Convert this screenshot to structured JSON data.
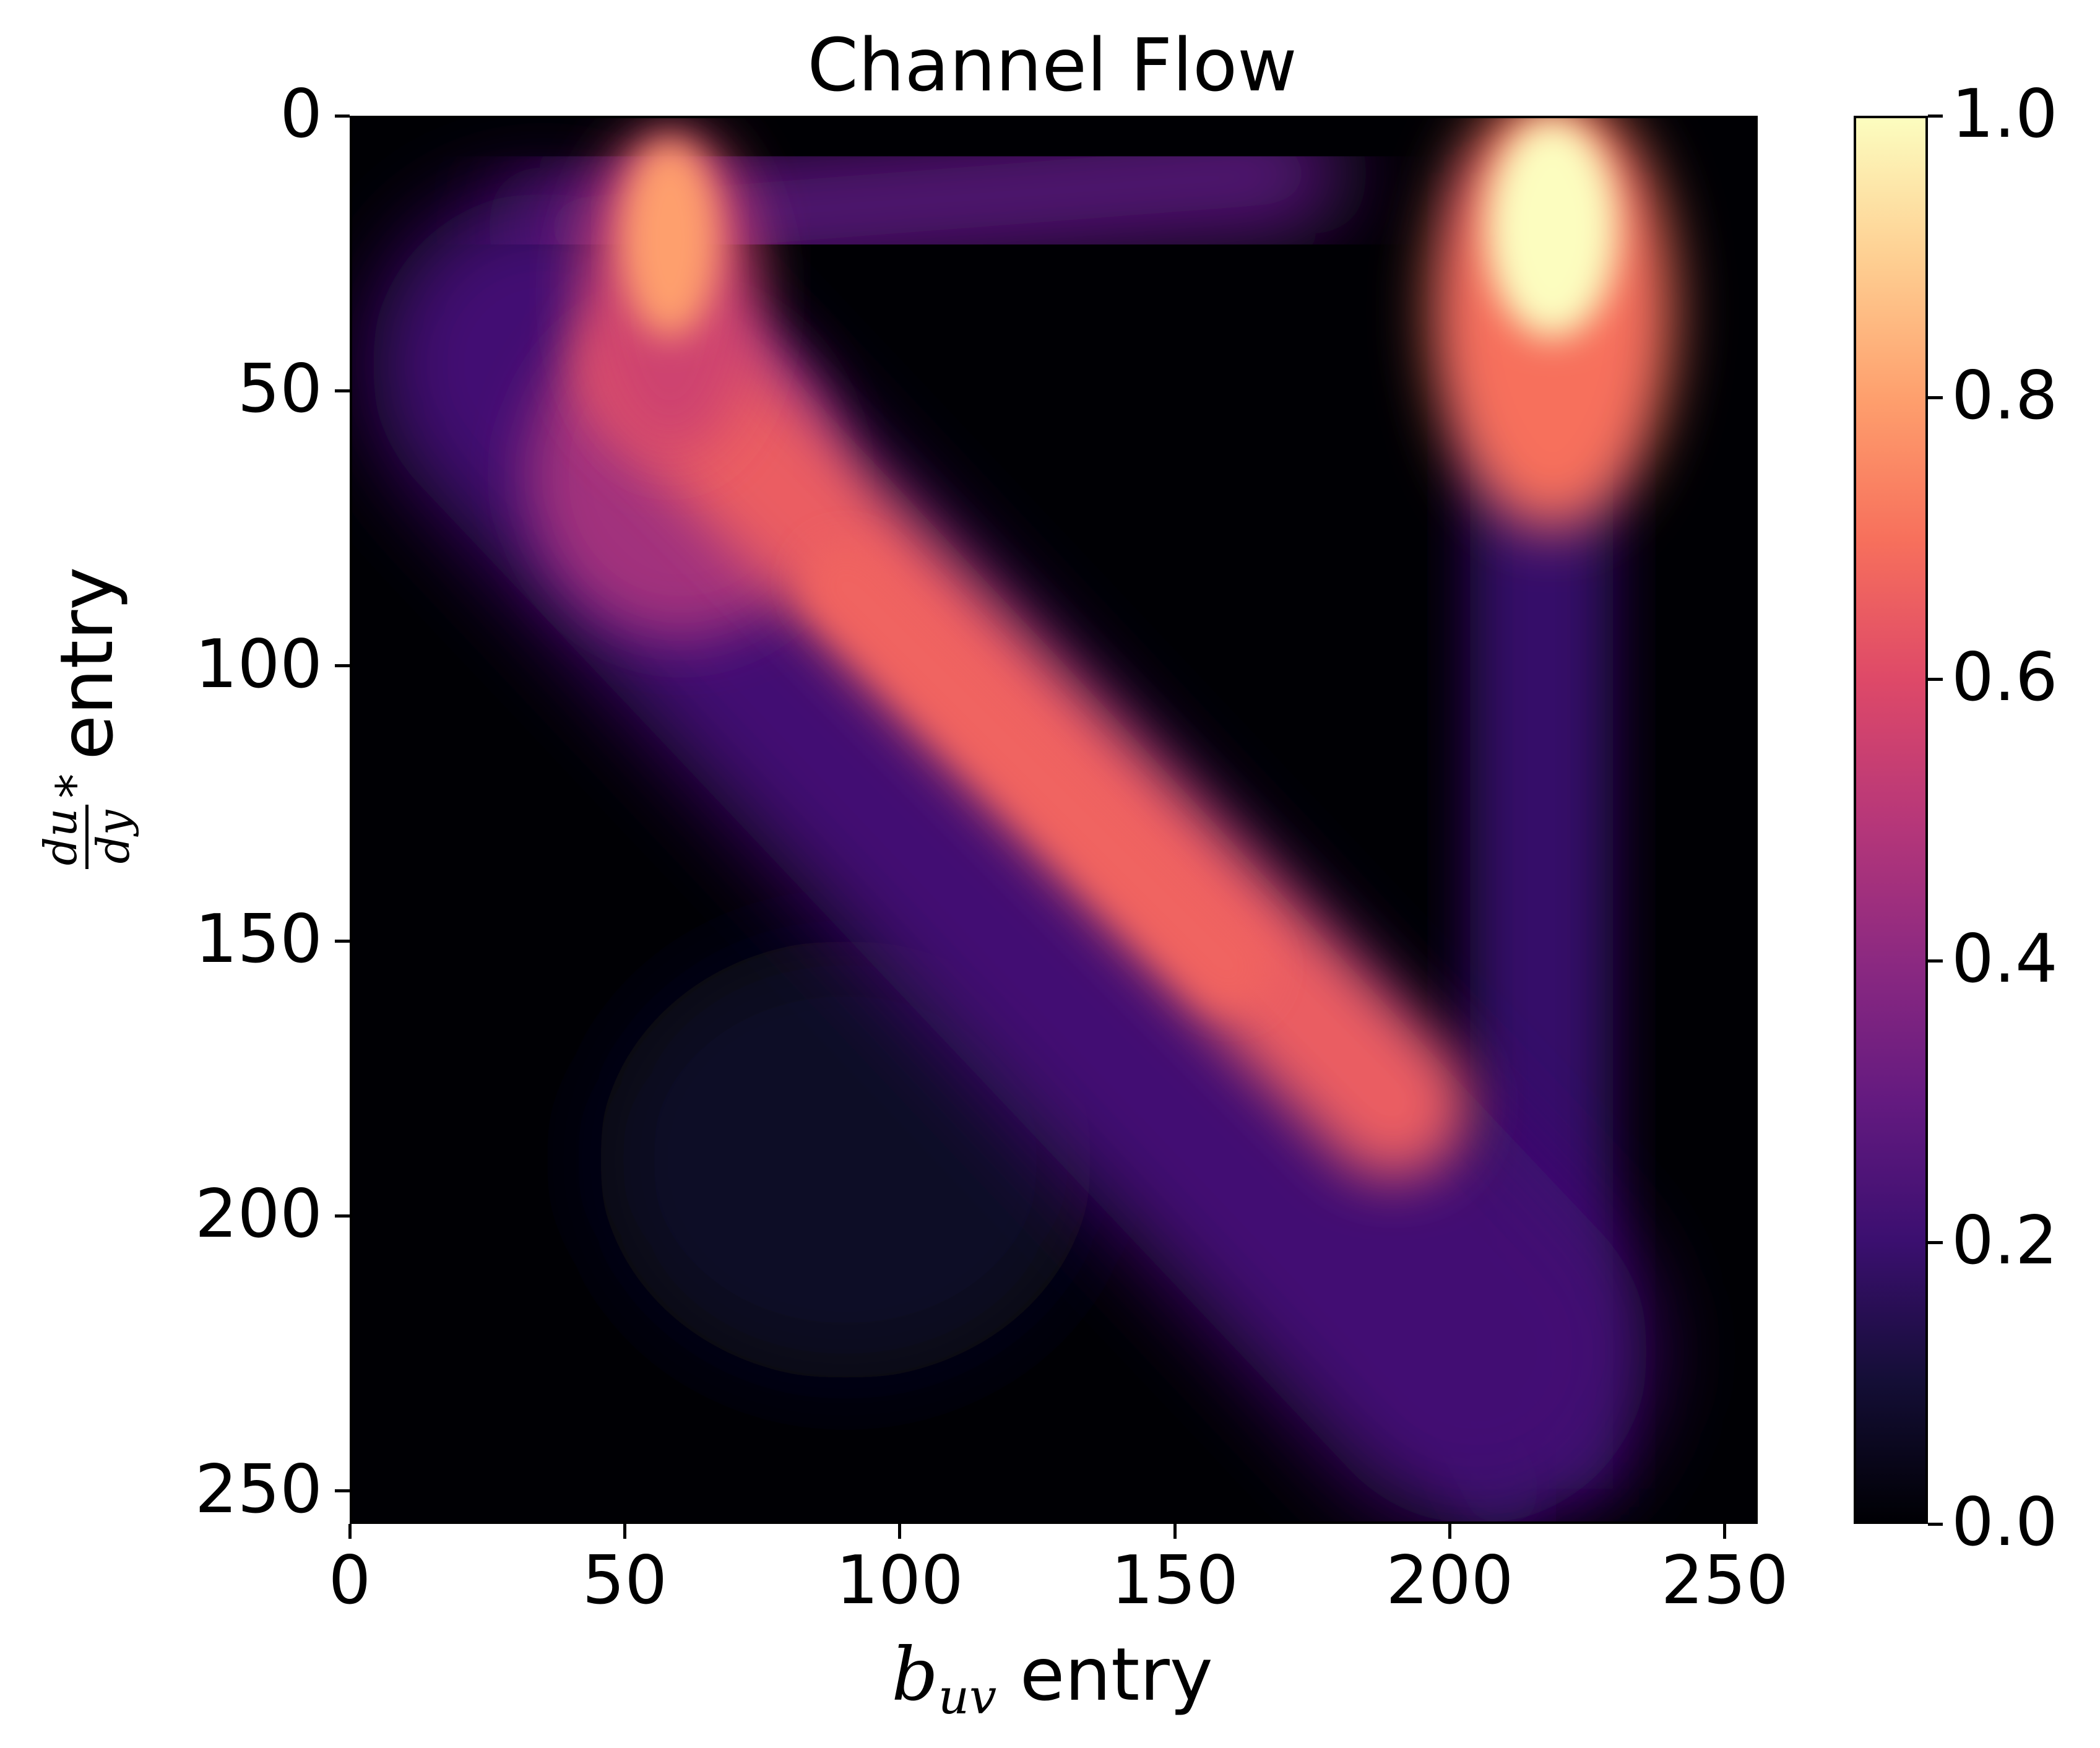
{
  "chart_data": {
    "type": "heatmap",
    "title": "Channel Flow",
    "xlabel": "entry",
    "xlabel_symbol": "b",
    "xlabel_subscript": "uv",
    "ylabel": "entry",
    "ylabel_numerator": "du",
    "ylabel_denominator": "dy",
    "ylabel_star": "*",
    "x_range": [
      0,
      256
    ],
    "y_range": [
      0,
      256
    ],
    "y_inverted": true,
    "x_ticks": [
      0,
      50,
      100,
      150,
      200,
      250
    ],
    "y_ticks": [
      0,
      50,
      100,
      150,
      200,
      250
    ],
    "colormap": "magma",
    "colorbar": {
      "range": [
        0.0,
        1.0
      ],
      "ticks": [
        "0.0",
        "0.2",
        "0.4",
        "0.6",
        "0.8",
        "1.0"
      ],
      "placement": "right"
    },
    "features": [
      {
        "kind": "diagonal-ridge",
        "from": [
          55,
          15
        ],
        "to": [
          200,
          200
        ],
        "peak_value": 0.65,
        "width": 14
      },
      {
        "kind": "hotspot",
        "center": [
          58,
          22
        ],
        "value": 0.8
      },
      {
        "kind": "hotspot",
        "center": [
          219,
          20
        ],
        "value": 1.0
      },
      {
        "kind": "vertical-band",
        "x": 218,
        "from_y": 10,
        "to_y": 250,
        "value": 0.25
      },
      {
        "kind": "faint-blob",
        "center": [
          90,
          190
        ],
        "value": 0.07
      }
    ]
  }
}
